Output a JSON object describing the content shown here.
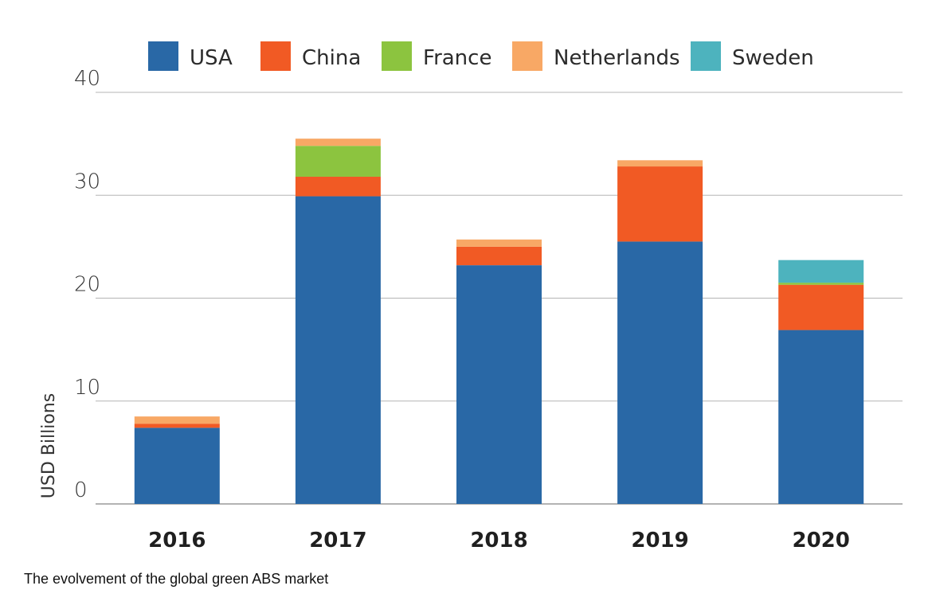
{
  "chart_data": {
    "type": "bar",
    "stacked": true,
    "categories": [
      "2016",
      "2017",
      "2018",
      "2019",
      "2020"
    ],
    "series": [
      {
        "name": "USA",
        "color": "#2968a6",
        "values": [
          7.4,
          29.9,
          23.2,
          25.5,
          16.9
        ]
      },
      {
        "name": "China",
        "color": "#f15a24",
        "values": [
          0.4,
          1.9,
          1.8,
          7.3,
          4.4
        ]
      },
      {
        "name": "France",
        "color": "#8cc43f",
        "values": [
          0,
          3.0,
          0,
          0,
          0.2
        ]
      },
      {
        "name": "Netherlands",
        "color": "#f8a865",
        "values": [
          0.7,
          0.7,
          0.7,
          0.6,
          0
        ]
      },
      {
        "name": "Sweden",
        "color": "#4db3be",
        "values": [
          0,
          0,
          0,
          0,
          2.2
        ]
      }
    ],
    "ylabel": "USD Billions",
    "xlabel": "",
    "ylim": [
      0,
      40
    ],
    "yticks": [
      0,
      10,
      20,
      30,
      40
    ],
    "grid": true,
    "legend_position": "top"
  },
  "caption": "The evolvement of the global green ABS market"
}
